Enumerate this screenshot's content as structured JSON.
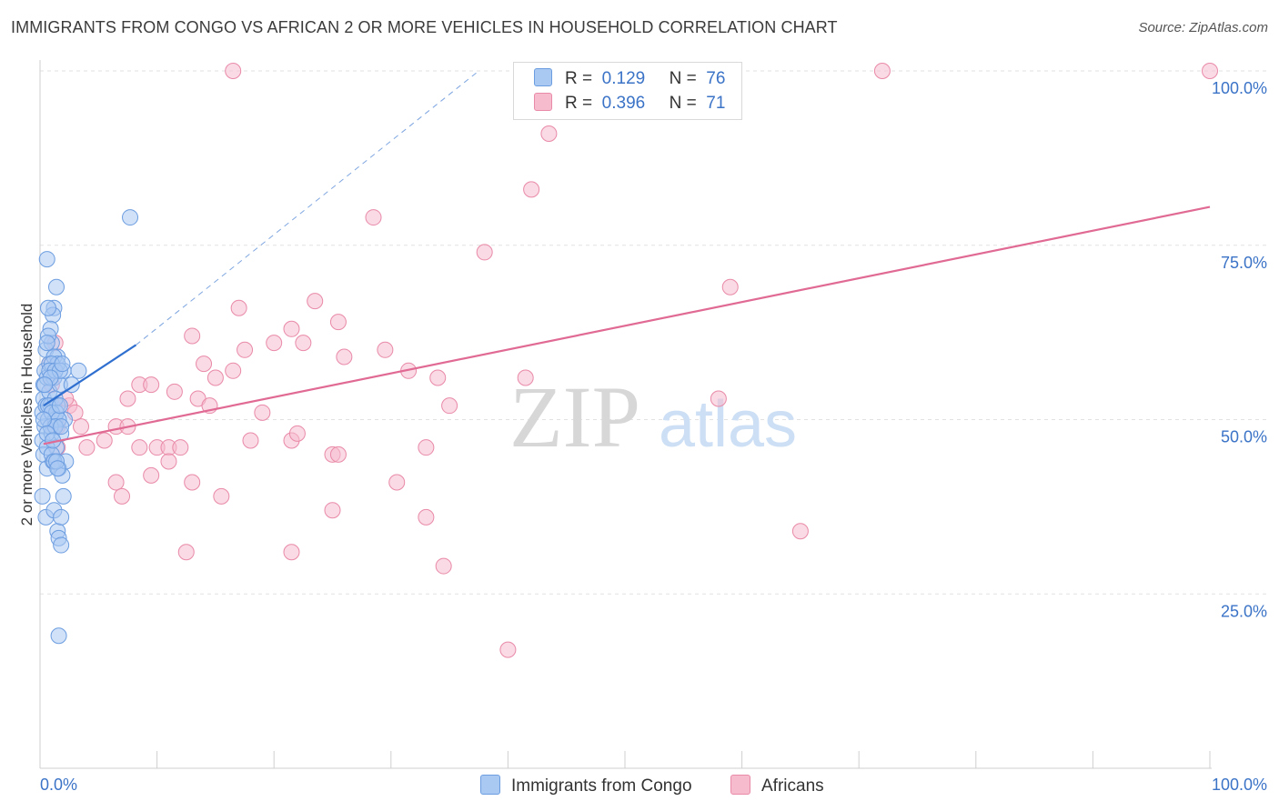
{
  "header": {
    "title": "IMMIGRANTS FROM CONGO VS AFRICAN 2 OR MORE VEHICLES IN HOUSEHOLD CORRELATION CHART",
    "source": "Source: ZipAtlas.com"
  },
  "watermark": {
    "zip": "ZIP",
    "atlas": "atlas"
  },
  "colors": {
    "blue_fill": "#a9c9f2",
    "blue_stroke": "#6c9de0",
    "blue_line": "#2f6fcf",
    "pink_fill": "#f6bccd",
    "pink_stroke": "#e98aa8",
    "pink_line": "#e06a93",
    "tick_text": "#3b73c7",
    "grid": "#e2e2e2"
  },
  "legend": {
    "rows": [
      {
        "r_label": "R =",
        "r_value": "0.129",
        "n_label": "N =",
        "n_value": "76",
        "color": "#a9c9f2"
      },
      {
        "r_label": "R =",
        "r_value": "0.396",
        "n_label": "N =",
        "n_value": "71",
        "color": "#f6bccd"
      }
    ]
  },
  "bottom_legend": [
    {
      "label": "Immigrants from Congo",
      "color": "#a9c9f2"
    },
    {
      "label": "Africans",
      "color": "#f6bccd"
    }
  ],
  "chart_data": {
    "type": "scatter",
    "title": "IMMIGRANTS FROM CONGO VS AFRICAN 2 OR MORE VEHICLES IN HOUSEHOLD CORRELATION CHART",
    "xlabel": "",
    "ylabel": "2 or more Vehicles in Household",
    "xlim": [
      0,
      100
    ],
    "ylim": [
      0,
      101
    ],
    "x_tick_labels": [
      "0.0%",
      "100.0%"
    ],
    "y_ticks": [
      25,
      50,
      75,
      100
    ],
    "y_tick_labels": [
      "25.0%",
      "50.0%",
      "75.0%",
      "100.0%"
    ],
    "grid": true,
    "legend_position": "top-center",
    "series": [
      {
        "name": "Immigrants from Congo",
        "R": 0.129,
        "N": 76,
        "trend": {
          "x": [
            0.3,
            8.2
          ],
          "y": [
            52.0,
            60.7
          ]
        },
        "trend_extension": {
          "x": [
            8.2,
            37.5
          ],
          "y": [
            60.7,
            100.0
          ]
        },
        "points": [
          [
            0.2,
            51
          ],
          [
            0.3,
            53
          ],
          [
            0.3,
            55
          ],
          [
            0.4,
            57
          ],
          [
            0.4,
            49
          ],
          [
            0.5,
            60
          ],
          [
            0.5,
            52
          ],
          [
            0.6,
            56
          ],
          [
            0.2,
            47
          ],
          [
            0.3,
            45
          ],
          [
            0.6,
            43
          ],
          [
            0.7,
            50
          ],
          [
            0.8,
            54
          ],
          [
            0.8,
            58
          ],
          [
            0.9,
            52
          ],
          [
            1.0,
            61
          ],
          [
            1.0,
            48
          ],
          [
            1.1,
            44
          ],
          [
            1.2,
            56
          ],
          [
            1.3,
            50
          ],
          [
            1.4,
            46
          ],
          [
            1.5,
            52
          ],
          [
            1.5,
            59
          ],
          [
            1.6,
            43
          ],
          [
            1.7,
            55
          ],
          [
            1.8,
            48
          ],
          [
            1.9,
            42
          ],
          [
            2.0,
            57
          ],
          [
            2.1,
            50
          ],
          [
            2.2,
            44
          ],
          [
            0.2,
            39
          ],
          [
            0.5,
            36
          ],
          [
            1.2,
            37
          ],
          [
            1.5,
            34
          ],
          [
            1.6,
            33
          ],
          [
            1.8,
            32
          ],
          [
            1.8,
            36
          ],
          [
            2.0,
            39
          ],
          [
            0.6,
            73
          ],
          [
            1.4,
            69
          ],
          [
            1.2,
            66
          ],
          [
            1.1,
            65
          ],
          [
            0.7,
            66
          ],
          [
            0.9,
            63
          ],
          [
            0.7,
            62
          ],
          [
            0.6,
            61
          ],
          [
            1.2,
            59
          ],
          [
            1.5,
            58
          ],
          [
            1.0,
            58
          ],
          [
            0.8,
            57
          ],
          [
            1.3,
            57
          ],
          [
            1.7,
            57
          ],
          [
            1.9,
            58
          ],
          [
            0.9,
            56
          ],
          [
            0.4,
            55
          ],
          [
            1.3,
            53
          ],
          [
            0.7,
            52
          ],
          [
            1.4,
            51
          ],
          [
            1.0,
            51
          ],
          [
            1.6,
            50
          ],
          [
            0.9,
            49
          ],
          [
            1.3,
            49
          ],
          [
            1.8,
            49
          ],
          [
            0.6,
            46
          ],
          [
            1.0,
            45
          ],
          [
            1.2,
            44
          ],
          [
            1.4,
            44
          ],
          [
            1.5,
            43
          ],
          [
            2.7,
            55
          ],
          [
            3.3,
            57
          ],
          [
            7.7,
            79
          ],
          [
            1.6,
            19
          ],
          [
            0.3,
            50
          ],
          [
            0.6,
            48
          ],
          [
            1.1,
            47
          ],
          [
            1.7,
            52
          ]
        ]
      },
      {
        "name": "Africans",
        "R": 0.396,
        "N": 71,
        "trend": {
          "x": [
            0.3,
            100.0
          ],
          "y": [
            46.5,
            80.5
          ]
        },
        "points": [
          [
            16.5,
            100
          ],
          [
            72.0,
            100
          ],
          [
            100.0,
            100
          ],
          [
            43.5,
            91
          ],
          [
            42.0,
            83
          ],
          [
            28.5,
            79
          ],
          [
            38.0,
            74
          ],
          [
            17.0,
            66
          ],
          [
            23.5,
            67
          ],
          [
            59.0,
            69
          ],
          [
            25.5,
            64
          ],
          [
            21.5,
            63
          ],
          [
            20.0,
            61
          ],
          [
            22.5,
            61
          ],
          [
            13.0,
            62
          ],
          [
            17.5,
            60
          ],
          [
            26.0,
            59
          ],
          [
            29.5,
            60
          ],
          [
            14.0,
            58
          ],
          [
            16.5,
            57
          ],
          [
            15.0,
            56
          ],
          [
            31.5,
            57
          ],
          [
            34.0,
            56
          ],
          [
            41.5,
            56
          ],
          [
            8.5,
            55
          ],
          [
            9.5,
            55
          ],
          [
            11.5,
            54
          ],
          [
            13.5,
            53
          ],
          [
            7.5,
            53
          ],
          [
            14.5,
            52
          ],
          [
            35.0,
            52
          ],
          [
            58.0,
            53
          ],
          [
            19.0,
            51
          ],
          [
            2.5,
            52
          ],
          [
            3.0,
            51
          ],
          [
            1.5,
            49
          ],
          [
            3.5,
            49
          ],
          [
            6.5,
            49
          ],
          [
            7.5,
            49
          ],
          [
            18.0,
            47
          ],
          [
            21.5,
            47
          ],
          [
            22.0,
            48
          ],
          [
            5.5,
            47
          ],
          [
            8.5,
            46
          ],
          [
            10.0,
            46
          ],
          [
            11.0,
            46
          ],
          [
            12.0,
            46
          ],
          [
            25.0,
            45
          ],
          [
            25.5,
            45
          ],
          [
            33.0,
            46
          ],
          [
            11.0,
            44
          ],
          [
            9.5,
            42
          ],
          [
            6.5,
            41
          ],
          [
            13.0,
            41
          ],
          [
            30.5,
            41
          ],
          [
            7.0,
            39
          ],
          [
            15.5,
            39
          ],
          [
            25.0,
            37
          ],
          [
            33.0,
            36
          ],
          [
            65.0,
            34
          ],
          [
            12.5,
            31
          ],
          [
            21.5,
            31
          ],
          [
            34.5,
            29
          ],
          [
            40.0,
            17
          ],
          [
            1.5,
            46
          ],
          [
            1.2,
            49
          ],
          [
            1.0,
            55
          ],
          [
            0.8,
            58
          ],
          [
            1.3,
            61
          ],
          [
            2.2,
            53
          ],
          [
            4.0,
            46
          ]
        ]
      }
    ]
  }
}
